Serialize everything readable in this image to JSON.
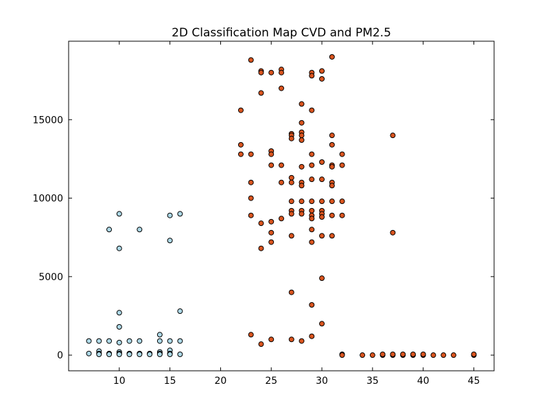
{
  "chart_data": {
    "type": "scatter",
    "title": "2D Classification Map CVD and PM2.5",
    "xlabel": "",
    "ylabel": "",
    "xlim": [
      5,
      47
    ],
    "ylim": [
      -1000,
      20000
    ],
    "xticks": [
      10,
      15,
      20,
      25,
      30,
      35,
      40,
      45
    ],
    "yticks": [
      0,
      5000,
      10000,
      15000
    ],
    "grid": false,
    "series": [
      {
        "color": "#add8e6",
        "points": [
          [
            7,
            900
          ],
          [
            7,
            100
          ],
          [
            8,
            900
          ],
          [
            8,
            250
          ],
          [
            8,
            100
          ],
          [
            8,
            50
          ],
          [
            9,
            900
          ],
          [
            9,
            100
          ],
          [
            9,
            50
          ],
          [
            9,
            8000
          ],
          [
            10,
            9000
          ],
          [
            10,
            6800
          ],
          [
            10,
            2700
          ],
          [
            10,
            1800
          ],
          [
            10,
            800
          ],
          [
            10,
            200
          ],
          [
            10,
            100
          ],
          [
            10,
            50
          ],
          [
            11,
            900
          ],
          [
            11,
            100
          ],
          [
            11,
            50
          ],
          [
            12,
            8000
          ],
          [
            12,
            900
          ],
          [
            12,
            100
          ],
          [
            12,
            50
          ],
          [
            13,
            100
          ],
          [
            13,
            50
          ],
          [
            14,
            1300
          ],
          [
            14,
            900
          ],
          [
            14,
            200
          ],
          [
            14,
            100
          ],
          [
            14,
            50
          ],
          [
            15,
            8900
          ],
          [
            15,
            7300
          ],
          [
            15,
            900
          ],
          [
            15,
            300
          ],
          [
            15,
            100
          ],
          [
            15,
            50
          ],
          [
            16,
            9000
          ],
          [
            16,
            2800
          ],
          [
            16,
            900
          ],
          [
            16,
            50
          ]
        ]
      },
      {
        "color": "#d9541e",
        "points": [
          [
            22,
            15600
          ],
          [
            22,
            13400
          ],
          [
            22,
            12800
          ],
          [
            23,
            18800
          ],
          [
            23,
            12800
          ],
          [
            23,
            11000
          ],
          [
            23,
            10000
          ],
          [
            23,
            8900
          ],
          [
            23,
            1300
          ],
          [
            24,
            18100
          ],
          [
            24,
            18000
          ],
          [
            24,
            16700
          ],
          [
            24,
            8400
          ],
          [
            24,
            6800
          ],
          [
            24,
            700
          ],
          [
            25,
            18000
          ],
          [
            25,
            13000
          ],
          [
            25,
            12800
          ],
          [
            25,
            12100
          ],
          [
            25,
            8500
          ],
          [
            25,
            7800
          ],
          [
            25,
            7200
          ],
          [
            25,
            1000
          ],
          [
            26,
            18200
          ],
          [
            26,
            18000
          ],
          [
            26,
            17000
          ],
          [
            26,
            12100
          ],
          [
            26,
            11000
          ],
          [
            26,
            8700
          ],
          [
            27,
            14100
          ],
          [
            27,
            14000
          ],
          [
            27,
            13800
          ],
          [
            27,
            11300
          ],
          [
            27,
            11000
          ],
          [
            27,
            9800
          ],
          [
            27,
            9200
          ],
          [
            27,
            9000
          ],
          [
            27,
            7600
          ],
          [
            27,
            4000
          ],
          [
            27,
            1000
          ],
          [
            28,
            16000
          ],
          [
            28,
            14800
          ],
          [
            28,
            14200
          ],
          [
            28,
            14000
          ],
          [
            28,
            13700
          ],
          [
            28,
            12000
          ],
          [
            28,
            11000
          ],
          [
            28,
            10800
          ],
          [
            28,
            9800
          ],
          [
            28,
            9200
          ],
          [
            28,
            9000
          ],
          [
            28,
            900
          ],
          [
            29,
            18000
          ],
          [
            29,
            17800
          ],
          [
            29,
            15600
          ],
          [
            29,
            12800
          ],
          [
            29,
            12100
          ],
          [
            29,
            11200
          ],
          [
            29,
            9800
          ],
          [
            29,
            9200
          ],
          [
            29,
            8900
          ],
          [
            29,
            8700
          ],
          [
            29,
            8000
          ],
          [
            29,
            7200
          ],
          [
            29,
            3200
          ],
          [
            29,
            1200
          ],
          [
            30,
            18100
          ],
          [
            30,
            17600
          ],
          [
            30,
            12300
          ],
          [
            30,
            11200
          ],
          [
            30,
            9800
          ],
          [
            30,
            9200
          ],
          [
            30,
            9000
          ],
          [
            30,
            8800
          ],
          [
            30,
            7600
          ],
          [
            30,
            4900
          ],
          [
            30,
            2000
          ],
          [
            31,
            19000
          ],
          [
            31,
            14000
          ],
          [
            31,
            13400
          ],
          [
            31,
            12100
          ],
          [
            31,
            12000
          ],
          [
            31,
            11000
          ],
          [
            31,
            10800
          ],
          [
            31,
            9800
          ],
          [
            31,
            8900
          ],
          [
            31,
            7600
          ],
          [
            32,
            12800
          ],
          [
            32,
            12100
          ],
          [
            32,
            9800
          ],
          [
            32,
            8900
          ],
          [
            32,
            50
          ],
          [
            32,
            0
          ],
          [
            34,
            0
          ],
          [
            35,
            0
          ],
          [
            36,
            0
          ],
          [
            36,
            50
          ],
          [
            37,
            14000
          ],
          [
            37,
            7800
          ],
          [
            37,
            0
          ],
          [
            37,
            50
          ],
          [
            38,
            0
          ],
          [
            38,
            50
          ],
          [
            39,
            0
          ],
          [
            39,
            50
          ],
          [
            40,
            0
          ],
          [
            40,
            50
          ],
          [
            41,
            0
          ],
          [
            42,
            0
          ],
          [
            43,
            0
          ],
          [
            45,
            0
          ],
          [
            45,
            50
          ]
        ]
      }
    ]
  }
}
